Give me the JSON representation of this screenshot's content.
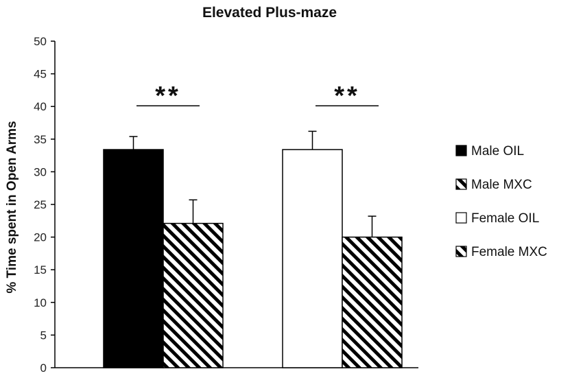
{
  "chart_data": {
    "type": "bar",
    "title": "Elevated Plus-maze",
    "ylabel": "% Time spent in Open Arms",
    "xlabel": "",
    "ylim": [
      0,
      50
    ],
    "yticks": [
      0,
      5,
      10,
      15,
      20,
      25,
      30,
      35,
      40,
      45,
      50
    ],
    "groups": [
      {
        "bars": [
          {
            "series": "Male OIL",
            "value": 33.4,
            "error": 2.0
          },
          {
            "series": "Male MXC",
            "value": 22.1,
            "error": 3.6
          }
        ],
        "significance": "**"
      },
      {
        "bars": [
          {
            "series": "Female OIL",
            "value": 33.4,
            "error": 2.8
          },
          {
            "series": "Female MXC",
            "value": 20.0,
            "error": 3.2
          }
        ],
        "significance": "**"
      }
    ],
    "legend": {
      "position": "right",
      "entries": [
        {
          "label": "Male OIL",
          "fill": "solid",
          "color": "#000000"
        },
        {
          "label": "Male MXC",
          "fill": "hatch",
          "color": "#000000"
        },
        {
          "label": "Female OIL",
          "fill": "white",
          "color": "#ffffff"
        },
        {
          "label": "Female MXC",
          "fill": "hatch",
          "color": "#000000"
        }
      ]
    },
    "grid": false
  }
}
